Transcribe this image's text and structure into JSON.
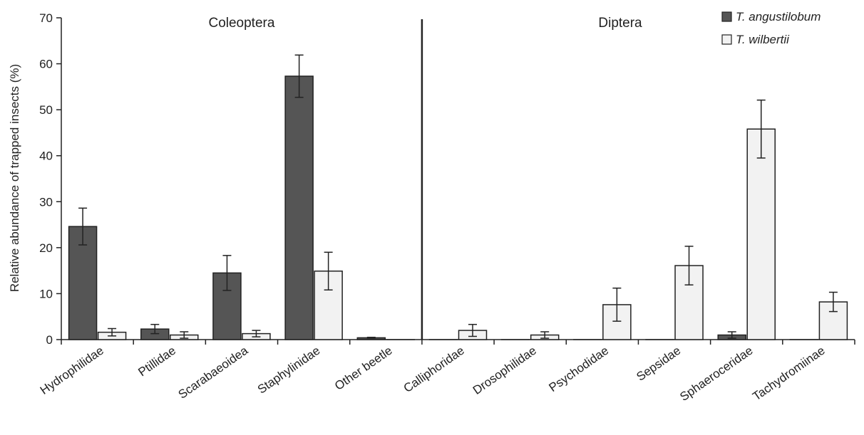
{
  "chart_data": {
    "type": "bar",
    "ylabel": "Relative abundance of trapped insects (%)",
    "ylim": [
      0,
      70
    ],
    "yticks": [
      0,
      10,
      20,
      30,
      40,
      50,
      60,
      70
    ],
    "grid": false,
    "legend_position": "top-right",
    "groups": [
      {
        "label": "Coleoptera",
        "categories": [
          "Hydrophilidae",
          "Ptillidae",
          "Scarabaeoidea",
          "Staphylinidae",
          "Other beetle"
        ]
      },
      {
        "label": "Diptera",
        "categories": [
          "Calliphoridae",
          "Drosophilidae",
          "Psychodidae",
          "Sepsidae",
          "Sphaeroceridae",
          "Tachydromiinae"
        ]
      }
    ],
    "categories": [
      "Hydrophilidae",
      "Ptillidae",
      "Scarabaeoidea",
      "Staphylinidae",
      "Other beetle",
      "Calliphoridae",
      "Drosophilidae",
      "Psychodidae",
      "Sepsidae",
      "Sphaeroceridae",
      "Tachydromiinae"
    ],
    "series": [
      {
        "name": "T. angustilobum",
        "color": "#555555",
        "values": [
          24.6,
          2.3,
          14.5,
          57.3,
          0.4,
          0,
          0,
          0,
          0,
          1.0,
          0
        ],
        "errors": [
          4.0,
          1.0,
          3.8,
          4.6,
          0.1,
          0,
          0,
          0,
          0,
          0.7,
          0
        ]
      },
      {
        "name": "T. wilbertii",
        "color": "#f2f2f2",
        "values": [
          1.6,
          1.0,
          1.3,
          14.9,
          0,
          2.0,
          1.0,
          7.6,
          16.1,
          45.8,
          8.2
        ],
        "errors": [
          0.8,
          0.7,
          0.7,
          4.1,
          0,
          1.3,
          0.7,
          3.6,
          4.2,
          6.3,
          2.1
        ]
      }
    ]
  }
}
